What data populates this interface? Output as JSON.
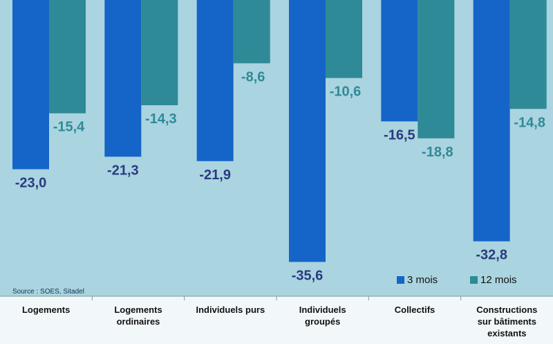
{
  "chart_data": {
    "type": "bar",
    "categories": [
      [
        "Logements"
      ],
      [
        "Logements",
        "ordinaires"
      ],
      [
        "Individuels purs"
      ],
      [
        "Individuels",
        "groupés"
      ],
      [
        "Collectifs"
      ],
      [
        "Constructions",
        "sur bâtiments",
        "existants"
      ]
    ],
    "series": [
      {
        "name": "3 mois",
        "color": "#1565c8",
        "values": [
          -23.0,
          -21.3,
          -21.9,
          -35.6,
          -16.5,
          -32.8
        ],
        "labels": [
          "-23,0",
          "-21,3",
          "-21,9",
          "-35,6",
          "-16,5",
          "-32,8"
        ]
      },
      {
        "name": "12 mois",
        "color": "#2e8a96",
        "values": [
          -15.4,
          -14.3,
          -8.6,
          -10.6,
          -18.8,
          -14.8
        ],
        "labels": [
          "-15,4",
          "-14,3",
          "-8,6",
          "-10,6",
          "-18,8",
          "-14,8"
        ]
      }
    ],
    "ylim": [
      -38,
      0
    ],
    "legend": "bottom-right",
    "source": "Source : SOES,  Sitadel",
    "plot_background": "#aad4e0",
    "label_color_3m": "#2a3a80",
    "label_color_12m": "#2e8a96"
  }
}
